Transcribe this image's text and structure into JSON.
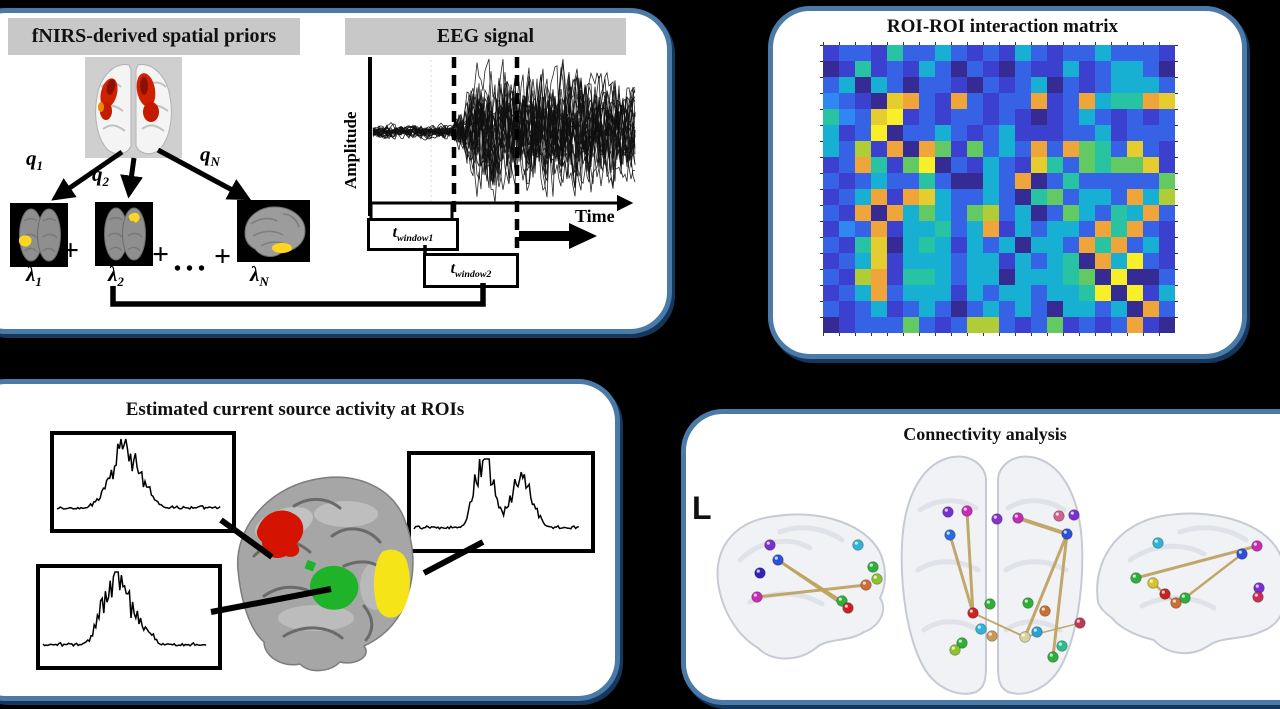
{
  "colors": {
    "background": "#000000",
    "panel_border": "#4a7ba8",
    "panel_shadow": "#16365c",
    "header_bg": "#c8c8c8",
    "glass_fill": "#eef0f4",
    "glass_stroke": "#c6cad4"
  },
  "priors": {
    "header": "fNIRS-derived spatial priors",
    "q_labels": [
      {
        "base": "q",
        "sub": "1"
      },
      {
        "base": "q",
        "sub": "2"
      },
      {
        "base": "q",
        "sub": "N"
      }
    ],
    "lambda_labels": [
      {
        "base": "λ",
        "sub": "1"
      },
      {
        "base": "λ",
        "sub": "2"
      },
      {
        "base": "λ",
        "sub": "N"
      }
    ],
    "plus": "+",
    "dots": "• • •"
  },
  "eeg": {
    "header": "EEG signal",
    "y_label": "Amplitude",
    "x_label": "Time",
    "windows": [
      {
        "base": "t",
        "sub": "window1"
      },
      {
        "base": "t",
        "sub": "window2"
      }
    ],
    "n_traces": 24,
    "seed": 5
  },
  "matrix": {
    "title": "ROI-ROI interaction matrix",
    "n_rows": 18,
    "n_cols": 22,
    "palette": [
      "#362b92",
      "#3b40cf",
      "#3663e6",
      "#2f87f2",
      "#17b0d3",
      "#27c3a2",
      "#63c963",
      "#b0cd38",
      "#e5cd30",
      "#f0a53b",
      "#f9ef28"
    ],
    "grid": [
      [
        1,
        2,
        2,
        1,
        5,
        2,
        2,
        4,
        2,
        1,
        2,
        1,
        4,
        2,
        1,
        2,
        2,
        4,
        2,
        2,
        2,
        1
      ],
      [
        0,
        1,
        5,
        1,
        2,
        1,
        4,
        2,
        0,
        2,
        1,
        0,
        2,
        1,
        1,
        4,
        1,
        2,
        4,
        4,
        2,
        0
      ],
      [
        2,
        4,
        0,
        4,
        2,
        0,
        2,
        2,
        1,
        0,
        2,
        1,
        2,
        4,
        0,
        2,
        1,
        2,
        4,
        4,
        4,
        2
      ],
      [
        3,
        2,
        1,
        0,
        8,
        9,
        2,
        1,
        9,
        2,
        1,
        2,
        2,
        9,
        1,
        2,
        9,
        4,
        5,
        5,
        9,
        8
      ],
      [
        5,
        3,
        2,
        8,
        10,
        1,
        2,
        1,
        2,
        2,
        1,
        2,
        1,
        0,
        1,
        2,
        4,
        2,
        1,
        2,
        1,
        2
      ],
      [
        4,
        1,
        2,
        10,
        0,
        2,
        2,
        4,
        2,
        1,
        2,
        4,
        1,
        1,
        1,
        2,
        2,
        4,
        1,
        2,
        2,
        2
      ],
      [
        4,
        2,
        7,
        1,
        9,
        0,
        9,
        6,
        1,
        6,
        2,
        4,
        2,
        9,
        2,
        9,
        6,
        5,
        2,
        8,
        2,
        1
      ],
      [
        1,
        2,
        9,
        5,
        1,
        6,
        10,
        0,
        2,
        1,
        4,
        2,
        1,
        8,
        5,
        2,
        6,
        5,
        6,
        6,
        8,
        1
      ],
      [
        2,
        1,
        2,
        4,
        2,
        2,
        5,
        2,
        0,
        0,
        4,
        2,
        9,
        0,
        2,
        5,
        2,
        2,
        2,
        2,
        2,
        6
      ],
      [
        1,
        2,
        4,
        9,
        1,
        9,
        8,
        4,
        2,
        2,
        4,
        2,
        0,
        5,
        6,
        2,
        4,
        4,
        2,
        9,
        4,
        7
      ],
      [
        2,
        1,
        9,
        0,
        9,
        4,
        6,
        4,
        2,
        6,
        7,
        2,
        4,
        0,
        2,
        6,
        4,
        2,
        5,
        4,
        9,
        2
      ],
      [
        1,
        3,
        2,
        9,
        1,
        4,
        4,
        5,
        2,
        4,
        9,
        1,
        4,
        2,
        4,
        4,
        2,
        9,
        5,
        9,
        2,
        1
      ],
      [
        2,
        1,
        5,
        8,
        0,
        4,
        5,
        4,
        1,
        4,
        2,
        4,
        0,
        4,
        4,
        2,
        9,
        5,
        9,
        2,
        4,
        1
      ],
      [
        1,
        2,
        4,
        8,
        1,
        4,
        4,
        4,
        2,
        4,
        4,
        1,
        4,
        2,
        4,
        5,
        0,
        9,
        4,
        10,
        2,
        1
      ],
      [
        2,
        1,
        7,
        9,
        1,
        5,
        5,
        4,
        2,
        4,
        4,
        0,
        4,
        4,
        4,
        5,
        6,
        0,
        10,
        0,
        0,
        2
      ],
      [
        1,
        2,
        4,
        9,
        2,
        4,
        4,
        4,
        1,
        4,
        2,
        4,
        4,
        2,
        4,
        4,
        5,
        10,
        0,
        10,
        1,
        4
      ],
      [
        2,
        1,
        2,
        4,
        1,
        2,
        4,
        2,
        0,
        2,
        4,
        2,
        4,
        2,
        0,
        4,
        4,
        2,
        4,
        0,
        9,
        2
      ],
      [
        0,
        1,
        2,
        2,
        2,
        6,
        2,
        1,
        2,
        7,
        7,
        2,
        1,
        2,
        6,
        1,
        2,
        1,
        2,
        9,
        1,
        0
      ]
    ]
  },
  "source": {
    "title": "Estimated current source activity at ROIs",
    "roi_colors": {
      "red": "#d41400",
      "green": "#1fb32a",
      "yellow": "#f5e518"
    },
    "signals": {
      "a": {
        "seed": 11,
        "bursts": [
          [
            0.3,
            0.35
          ],
          [
            0.4,
            1.0
          ],
          [
            0.47,
            0.5
          ],
          [
            0.55,
            0.3
          ]
        ]
      },
      "b": {
        "seed": 23,
        "bursts": [
          [
            0.36,
            0.5
          ],
          [
            0.44,
            1.0
          ],
          [
            0.52,
            0.55
          ],
          [
            0.62,
            0.3
          ]
        ]
      },
      "c": {
        "seed": 37,
        "bursts": [
          [
            0.4,
            1.0
          ],
          [
            0.46,
            0.65
          ],
          [
            0.62,
            0.8
          ],
          [
            0.7,
            0.45
          ]
        ]
      }
    }
  },
  "connectivity": {
    "title": "Connectivity analysis",
    "left_label": "L",
    "edge_color": "#bda15c",
    "views": [
      {
        "name": "left-lateral",
        "nodes": [
          [
            90,
            105,
            "#7a2fd0"
          ],
          [
            98,
            120,
            "#2b50d9"
          ],
          [
            80,
            133,
            "#3522b8"
          ],
          [
            77,
            157,
            "#c92bb4"
          ],
          [
            178,
            105,
            "#2fb3d9"
          ],
          [
            193,
            127,
            "#2fae3a"
          ],
          [
            197,
            139,
            "#8fc32c"
          ],
          [
            186,
            145,
            "#cc6e35"
          ],
          [
            162,
            161,
            "#2fae3a"
          ],
          [
            168,
            168,
            "#c92222"
          ]
        ],
        "edges": [
          [
            1,
            9,
            3
          ],
          [
            3,
            7,
            3
          ],
          [
            1,
            8,
            2
          ]
        ]
      },
      {
        "name": "axial",
        "nodes": [
          [
            268,
            72,
            "#7a2fd0"
          ],
          [
            287,
            71,
            "#c92bb4"
          ],
          [
            317,
            79,
            "#8833cc"
          ],
          [
            338,
            78,
            "#c02bb8"
          ],
          [
            379,
            76,
            "#d06090"
          ],
          [
            394,
            75,
            "#7a2fd0"
          ],
          [
            270,
            95,
            "#2b6be0"
          ],
          [
            387,
            94,
            "#2b50d9"
          ],
          [
            348,
            163,
            "#2fae3a"
          ],
          [
            310,
            164,
            "#2fae3a"
          ],
          [
            293,
            173,
            "#c92222"
          ],
          [
            365,
            171,
            "#cc6e35"
          ],
          [
            301,
            189,
            "#2fb3d9"
          ],
          [
            312,
            196,
            "#c99a55"
          ],
          [
            357,
            192,
            "#2b9fd9"
          ],
          [
            345,
            197,
            "#d9d2a0"
          ],
          [
            400,
            183,
            "#bb3a55"
          ],
          [
            282,
            203,
            "#2fae3a"
          ],
          [
            275,
            210,
            "#8fc32c"
          ],
          [
            373,
            217,
            "#2fae3a"
          ],
          [
            382,
            206,
            "#28bf8f"
          ]
        ],
        "edges": [
          [
            1,
            10,
            3
          ],
          [
            6,
            10,
            3
          ],
          [
            3,
            7,
            4
          ],
          [
            7,
            15,
            3
          ],
          [
            7,
            19,
            3
          ],
          [
            10,
            15,
            2
          ],
          [
            15,
            16,
            1.5
          ]
        ]
      },
      {
        "name": "right-lateral",
        "nodes": [
          [
            478,
            103,
            "#2fb3d9"
          ],
          [
            577,
            106,
            "#c92bb4"
          ],
          [
            562,
            114,
            "#2b50d9"
          ],
          [
            579,
            148,
            "#7a2fd0"
          ],
          [
            578,
            157,
            "#cc2b55"
          ],
          [
            456,
            138,
            "#2fae3a"
          ],
          [
            473,
            143,
            "#d8c32b"
          ],
          [
            485,
            154,
            "#c92222"
          ],
          [
            496,
            163,
            "#cc6e35"
          ],
          [
            505,
            158,
            "#2fae3a"
          ]
        ],
        "edges": [
          [
            5,
            1,
            3
          ],
          [
            2,
            9,
            2.5
          ],
          [
            6,
            7,
            2.5
          ],
          [
            7,
            8,
            2
          ]
        ]
      }
    ]
  }
}
